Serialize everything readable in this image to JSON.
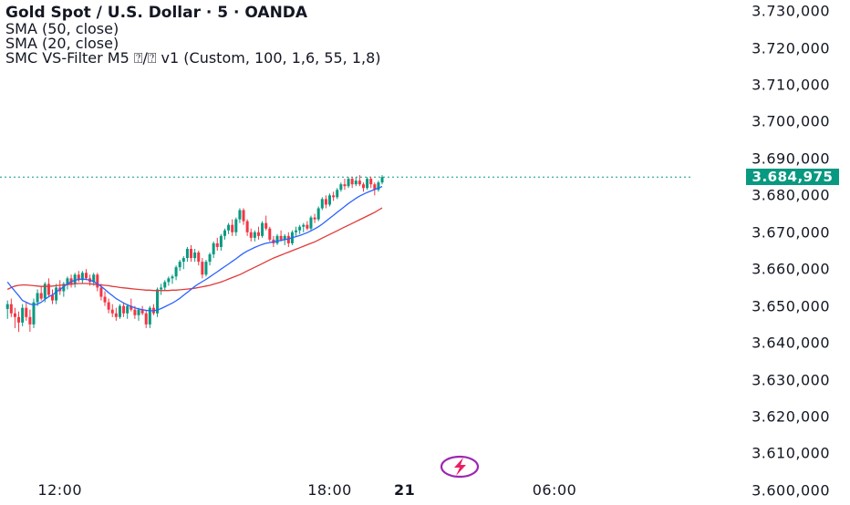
{
  "legend": {
    "title": "Gold Spot / U.S. Dollar · 5 · OANDA",
    "sma50": "SMA (50, close)",
    "sma20": "SMA (20, close)",
    "indicator": "SMC VS-Filter M5 ⍰/⍰ v1 (Custom, 100, 1,6, 55, 1,8)"
  },
  "last_price": "3.684,975",
  "colors": {
    "up": "#089981",
    "down": "#f23645",
    "sma20": "#2962ff",
    "sma50": "#e03a3a",
    "last_line": "#089981"
  },
  "chart_data": {
    "type": "candlestick",
    "symbol": "XAUUSD",
    "timeframe": "5",
    "y_ticks": [
      "3.730,000",
      "3.720,000",
      "3.710,000",
      "3.700,000",
      "3.690,000",
      "3.680,000",
      "3.670,000",
      "3.660,000",
      "3.650,000",
      "3.640,000",
      "3.630,000",
      "3.620,000",
      "3.610,000",
      "3.600,000"
    ],
    "y_tick_values": [
      3730,
      3720,
      3710,
      3700,
      3690,
      3680,
      3670,
      3660,
      3650,
      3640,
      3630,
      3620,
      3610,
      3600
    ],
    "ylim": [
      3597,
      3733
    ],
    "x_ticks": [
      "12:00",
      "18:00",
      "21",
      "06:00"
    ],
    "x_tick_index": [
      14,
      86,
      106,
      146
    ],
    "x_index_range": [
      -2,
      183
    ],
    "last_price_value": 3684.975,
    "candles": [
      [
        3649.2,
        3651.5,
        3646.5,
        3650.5
      ],
      [
        3650.5,
        3652.0,
        3647.0,
        3648.0
      ],
      [
        3648.0,
        3649.5,
        3644.0,
        3647.0
      ],
      [
        3647.0,
        3648.5,
        3643.0,
        3645.5
      ],
      [
        3645.5,
        3650.5,
        3644.5,
        3649.5
      ],
      [
        3649.5,
        3651.0,
        3646.0,
        3647.0
      ],
      [
        3647.0,
        3649.0,
        3643.0,
        3645.0
      ],
      [
        3645.0,
        3652.0,
        3644.0,
        3651.0
      ],
      [
        3651.0,
        3654.5,
        3650.0,
        3653.5
      ],
      [
        3653.5,
        3655.5,
        3651.5,
        3652.0
      ],
      [
        3652.0,
        3656.5,
        3651.0,
        3656.0
      ],
      [
        3656.0,
        3657.5,
        3652.5,
        3653.0
      ],
      [
        3653.0,
        3654.5,
        3650.5,
        3651.5
      ],
      [
        3651.5,
        3656.0,
        3650.5,
        3655.0
      ],
      [
        3655.0,
        3657.0,
        3653.0,
        3654.0
      ],
      [
        3654.0,
        3656.5,
        3652.5,
        3656.0
      ],
      [
        3656.0,
        3658.0,
        3654.5,
        3657.5
      ],
      [
        3657.5,
        3658.5,
        3655.0,
        3656.0
      ],
      [
        3656.0,
        3659.0,
        3655.0,
        3658.5
      ],
      [
        3658.5,
        3659.5,
        3656.5,
        3657.0
      ],
      [
        3657.0,
        3659.5,
        3656.0,
        3659.0
      ],
      [
        3659.0,
        3660.0,
        3657.0,
        3657.5
      ],
      [
        3657.5,
        3658.5,
        3655.5,
        3656.5
      ],
      [
        3656.5,
        3659.0,
        3655.5,
        3658.5
      ],
      [
        3658.5,
        3659.0,
        3654.0,
        3655.0
      ],
      [
        3655.0,
        3656.0,
        3651.5,
        3652.5
      ],
      [
        3652.5,
        3654.0,
        3650.0,
        3651.0
      ],
      [
        3651.0,
        3652.0,
        3648.0,
        3649.0
      ],
      [
        3649.0,
        3650.5,
        3647.0,
        3648.0
      ],
      [
        3648.0,
        3649.5,
        3646.0,
        3647.0
      ],
      [
        3647.0,
        3650.5,
        3646.5,
        3650.0
      ],
      [
        3650.0,
        3651.0,
        3647.0,
        3648.0
      ],
      [
        3648.0,
        3650.5,
        3646.5,
        3650.0
      ],
      [
        3650.0,
        3652.0,
        3648.5,
        3649.0
      ],
      [
        3649.0,
        3650.0,
        3646.5,
        3647.5
      ],
      [
        3647.5,
        3649.5,
        3646.0,
        3649.0
      ],
      [
        3649.0,
        3650.0,
        3647.5,
        3648.0
      ],
      [
        3648.0,
        3649.0,
        3644.0,
        3645.0
      ],
      [
        3645.0,
        3650.0,
        3644.0,
        3649.5
      ],
      [
        3649.5,
        3650.5,
        3647.5,
        3648.0
      ],
      [
        3648.0,
        3655.0,
        3647.0,
        3654.5
      ],
      [
        3654.5,
        3656.0,
        3653.0,
        3655.0
      ],
      [
        3655.0,
        3657.0,
        3654.0,
        3656.5
      ],
      [
        3656.5,
        3658.0,
        3655.5,
        3657.5
      ],
      [
        3657.5,
        3658.5,
        3656.0,
        3658.0
      ],
      [
        3658.0,
        3661.0,
        3657.0,
        3660.5
      ],
      [
        3660.5,
        3662.5,
        3659.5,
        3662.0
      ],
      [
        3662.0,
        3663.5,
        3660.0,
        3663.0
      ],
      [
        3663.0,
        3666.0,
        3662.0,
        3665.5
      ],
      [
        3665.5,
        3666.5,
        3662.0,
        3663.0
      ],
      [
        3663.0,
        3665.5,
        3662.0,
        3664.5
      ],
      [
        3664.5,
        3665.0,
        3661.0,
        3662.0
      ],
      [
        3662.0,
        3663.0,
        3657.5,
        3658.5
      ],
      [
        3658.5,
        3662.5,
        3658.0,
        3662.0
      ],
      [
        3662.0,
        3664.5,
        3661.0,
        3664.0
      ],
      [
        3664.0,
        3667.5,
        3663.0,
        3667.0
      ],
      [
        3667.0,
        3668.5,
        3665.0,
        3666.0
      ],
      [
        3666.0,
        3669.5,
        3665.0,
        3669.0
      ],
      [
        3669.0,
        3671.0,
        3668.0,
        3670.5
      ],
      [
        3670.5,
        3672.5,
        3669.5,
        3672.0
      ],
      [
        3672.0,
        3673.5,
        3669.0,
        3670.0
      ],
      [
        3670.0,
        3674.0,
        3669.0,
        3673.5
      ],
      [
        3673.5,
        3676.5,
        3672.5,
        3676.0
      ],
      [
        3676.0,
        3676.5,
        3672.0,
        3673.0
      ],
      [
        3673.0,
        3673.5,
        3669.0,
        3670.0
      ],
      [
        3670.0,
        3671.0,
        3667.5,
        3668.5
      ],
      [
        3668.5,
        3670.5,
        3667.5,
        3670.0
      ],
      [
        3670.0,
        3671.5,
        3668.0,
        3669.0
      ],
      [
        3669.0,
        3673.0,
        3668.5,
        3672.5
      ],
      [
        3672.5,
        3674.5,
        3670.5,
        3671.0
      ],
      [
        3671.0,
        3671.5,
        3667.5,
        3668.0
      ],
      [
        3668.0,
        3669.0,
        3666.0,
        3667.0
      ],
      [
        3667.0,
        3669.5,
        3666.5,
        3669.0
      ],
      [
        3669.0,
        3670.5,
        3667.5,
        3668.0
      ],
      [
        3668.0,
        3669.5,
        3666.5,
        3669.0
      ],
      [
        3669.0,
        3670.0,
        3666.0,
        3667.0
      ],
      [
        3667.0,
        3670.5,
        3666.5,
        3670.0
      ],
      [
        3670.0,
        3671.5,
        3669.0,
        3670.5
      ],
      [
        3670.5,
        3672.0,
        3669.5,
        3671.5
      ],
      [
        3671.5,
        3672.5,
        3670.0,
        3672.0
      ],
      [
        3672.0,
        3673.0,
        3670.5,
        3671.0
      ],
      [
        3671.0,
        3674.5,
        3670.5,
        3674.0
      ],
      [
        3674.0,
        3675.0,
        3672.5,
        3673.5
      ],
      [
        3673.5,
        3677.0,
        3673.0,
        3676.5
      ],
      [
        3676.5,
        3679.5,
        3676.0,
        3679.0
      ],
      [
        3679.0,
        3680.0,
        3676.5,
        3677.5
      ],
      [
        3677.5,
        3680.5,
        3677.0,
        3680.0
      ],
      [
        3680.0,
        3681.0,
        3678.5,
        3679.5
      ],
      [
        3679.5,
        3682.0,
        3679.0,
        3681.5
      ],
      [
        3681.5,
        3683.5,
        3681.0,
        3683.0
      ],
      [
        3683.0,
        3684.5,
        3681.5,
        3682.5
      ],
      [
        3682.5,
        3685.0,
        3682.0,
        3684.5
      ],
      [
        3684.5,
        3685.0,
        3682.0,
        3683.0
      ],
      [
        3683.0,
        3685.0,
        3682.5,
        3684.0
      ],
      [
        3684.0,
        3685.5,
        3682.5,
        3683.0
      ],
      [
        3683.0,
        3683.5,
        3681.0,
        3682.0
      ],
      [
        3682.0,
        3685.0,
        3681.5,
        3684.5
      ],
      [
        3684.5,
        3685.0,
        3682.0,
        3683.0
      ],
      [
        3683.0,
        3683.5,
        3680.0,
        3681.5
      ],
      [
        3681.5,
        3684.0,
        3681.0,
        3683.5
      ],
      [
        3683.5,
        3685.5,
        3683.0,
        3684.975
      ]
    ],
    "sma20": [
      3656.5,
      3655.2,
      3654.0,
      3652.8,
      3651.5,
      3651.0,
      3650.5,
      3650.3,
      3650.5,
      3651.0,
      3651.8,
      3652.5,
      3653.0,
      3653.8,
      3654.5,
      3655.2,
      3656.0,
      3656.6,
      3657.0,
      3657.2,
      3657.3,
      3657.2,
      3657.0,
      3656.6,
      3656.0,
      3655.3,
      3654.5,
      3653.6,
      3652.8,
      3652.0,
      3651.4,
      3650.8,
      3650.3,
      3649.9,
      3649.5,
      3649.2,
      3649.0,
      3648.8,
      3648.7,
      3648.7,
      3648.9,
      3649.3,
      3649.8,
      3650.3,
      3650.8,
      3651.4,
      3652.1,
      3652.9,
      3653.7,
      3654.5,
      3655.3,
      3656.0,
      3656.6,
      3657.2,
      3657.9,
      3658.6,
      3659.3,
      3660.0,
      3660.7,
      3661.4,
      3662.1,
      3662.8,
      3663.6,
      3664.3,
      3664.9,
      3665.4,
      3665.9,
      3666.3,
      3666.7,
      3667.0,
      3667.2,
      3667.4,
      3667.6,
      3667.8,
      3668.0,
      3668.2,
      3668.5,
      3668.8,
      3669.1,
      3669.5,
      3669.9,
      3670.4,
      3670.9,
      3671.5,
      3672.2,
      3673.0,
      3673.8,
      3674.6,
      3675.4,
      3676.2,
      3677.0,
      3677.8,
      3678.5,
      3679.2,
      3679.8,
      3680.3,
      3680.8,
      3681.2,
      3681.6,
      3682.0,
      3682.4
    ],
    "sma50": [
      3654.5,
      3655.0,
      3655.4,
      3655.6,
      3655.7,
      3655.7,
      3655.6,
      3655.5,
      3655.4,
      3655.3,
      3655.3,
      3655.3,
      3655.4,
      3655.5,
      3655.6,
      3655.7,
      3655.8,
      3655.9,
      3656.0,
      3656.1,
      3656.1,
      3656.1,
      3656.0,
      3655.9,
      3655.8,
      3655.7,
      3655.6,
      3655.5,
      3655.3,
      3655.2,
      3655.0,
      3654.9,
      3654.8,
      3654.7,
      3654.6,
      3654.5,
      3654.4,
      3654.3,
      3654.3,
      3654.2,
      3654.2,
      3654.2,
      3654.2,
      3654.2,
      3654.3,
      3654.3,
      3654.4,
      3654.5,
      3654.6,
      3654.7,
      3654.8,
      3655.0,
      3655.2,
      3655.4,
      3655.6,
      3655.9,
      3656.2,
      3656.5,
      3656.9,
      3657.3,
      3657.7,
      3658.1,
      3658.5,
      3659.0,
      3659.5,
      3660.0,
      3660.5,
      3661.0,
      3661.5,
      3662.0,
      3662.5,
      3663.0,
      3663.4,
      3663.8,
      3664.2,
      3664.6,
      3665.0,
      3665.4,
      3665.8,
      3666.2,
      3666.6,
      3667.0,
      3667.4,
      3667.9,
      3668.4,
      3668.9,
      3669.4,
      3669.9,
      3670.4,
      3670.9,
      3671.4,
      3671.9,
      3672.4,
      3672.9,
      3673.4,
      3673.9,
      3674.4,
      3674.9,
      3675.4,
      3676.0,
      3676.6
    ]
  }
}
